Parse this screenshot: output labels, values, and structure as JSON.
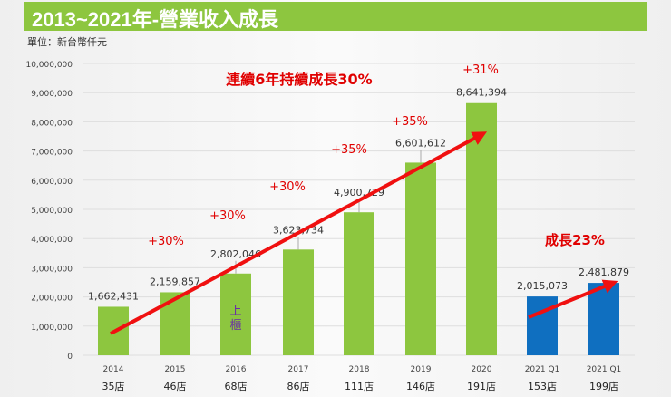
{
  "header": {
    "title": "2013~2021年-營業收入成長",
    "unit": "單位：新台幣仟元"
  },
  "chart_data": {
    "type": "bar",
    "categories": [
      "2014",
      "2015",
      "2016",
      "2017",
      "2018",
      "2019",
      "2020",
      "2021 Q1",
      "2021 Q1"
    ],
    "store_counts": [
      "35店",
      "46店",
      "68店",
      "86店",
      "111店",
      "146店",
      "191店",
      "153店",
      "199店"
    ],
    "values": [
      1662431,
      2159857,
      2802046,
      3623734,
      4900729,
      6601612,
      8641394,
      2015073,
      2481879
    ],
    "value_labels": [
      "1,662,431",
      "2,159,857",
      "2,802,046",
      "3,623,734",
      "4,900,729",
      "6,601,612",
      "8,641,394",
      "2,015,073",
      "2,481,879"
    ],
    "bar_colors": [
      "#8dc63f",
      "#8dc63f",
      "#8dc63f",
      "#8dc63f",
      "#8dc63f",
      "#8dc63f",
      "#8dc63f",
      "#0f6fc0",
      "#0f6fc0"
    ],
    "ylim": [
      0,
      10000000
    ],
    "yticks": [
      "0",
      "1,000,000",
      "2,000,000",
      "3,000,000",
      "4,000,000",
      "5,000,000",
      "6,000,000",
      "7,000,000",
      "8,000,000",
      "9,000,000",
      "10,000,000"
    ],
    "grid": true,
    "growth_labels": [
      "+30%",
      "+30%",
      "+30%",
      "+35%",
      "+35%",
      "+31%"
    ],
    "annotations": {
      "main": "連續6年持續成長30%",
      "q1": "成長23%",
      "listing": "上櫃"
    },
    "accent_color": "#e00000"
  }
}
